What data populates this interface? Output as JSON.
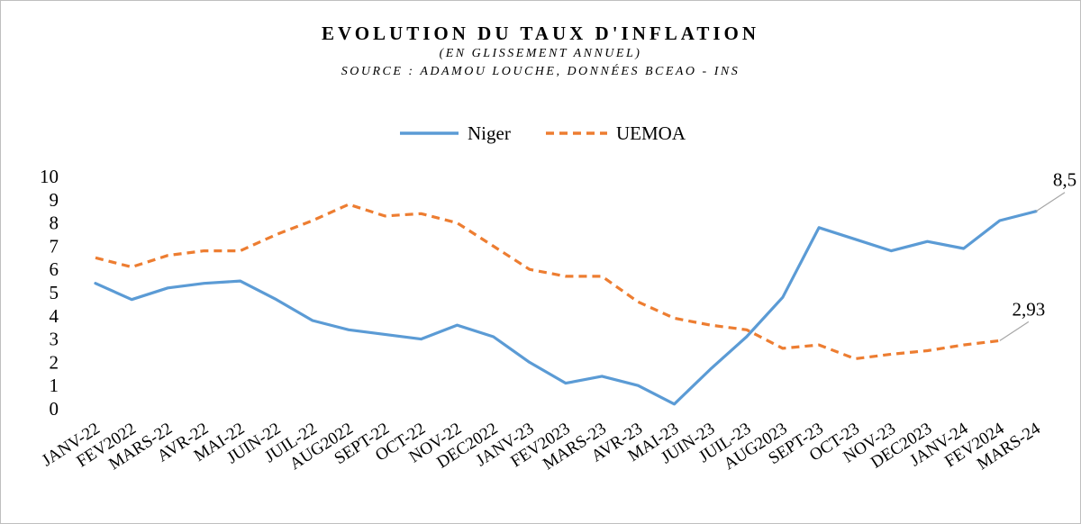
{
  "chart_data": {
    "type": "line",
    "title": "EVOLUTION DU TAUX D'INFLATION",
    "subtitle": "(EN GLISSEMENT ANNUEL)",
    "source": "SOURCE : ADAMOU LOUCHE, DONNÉES BCEAO - INS",
    "categories": [
      "JANV-22",
      "FEV2022",
      "MARS-22",
      "AVR-22",
      "MAI-22",
      "JUIN-22",
      "JUIL-22",
      "AUG2022",
      "SEPT-22",
      "OCT-22",
      "NOV-22",
      "DEC2022",
      "JANV-23",
      "FEV2023",
      "MARS-23",
      "AVR-23",
      "MAI-23",
      "JUIN-23",
      "JUIL-23",
      "AUG2023",
      "SEPT-23",
      "OCT-23",
      "NOV-23",
      "DEC2023",
      "JANV-24",
      "FEV2024",
      "MARS-24"
    ],
    "series": [
      {
        "name": "Niger",
        "color": "#5b9bd5",
        "style": "solid",
        "values": [
          5.4,
          4.7,
          5.2,
          5.4,
          5.5,
          4.7,
          3.8,
          3.4,
          3.2,
          3.0,
          3.6,
          3.1,
          2.0,
          1.1,
          1.4,
          1.0,
          0.2,
          1.7,
          3.1,
          4.8,
          7.8,
          7.3,
          6.8,
          7.2,
          6.9,
          8.1,
          8.5
        ]
      },
      {
        "name": "UEMOA",
        "color": "#ed7d31",
        "style": "dashed",
        "values": [
          6.5,
          6.1,
          6.6,
          6.8,
          6.8,
          7.5,
          8.1,
          8.8,
          8.3,
          8.4,
          8.0,
          7.0,
          6.0,
          5.7,
          5.7,
          4.6,
          3.9,
          3.6,
          3.4,
          2.6,
          2.75,
          2.15,
          2.35,
          2.5,
          2.75,
          2.93,
          null
        ]
      }
    ],
    "data_labels": [
      {
        "series": "Niger",
        "index": 26,
        "text": "8,5"
      },
      {
        "series": "UEMOA",
        "index": 25,
        "text": "2,93"
      }
    ],
    "ylim": [
      0,
      10
    ],
    "yticks": [
      "0",
      "1",
      "2",
      "3",
      "4",
      "5",
      "6",
      "7",
      "8",
      "9",
      "10"
    ],
    "grid": false,
    "legend": "top-center"
  }
}
